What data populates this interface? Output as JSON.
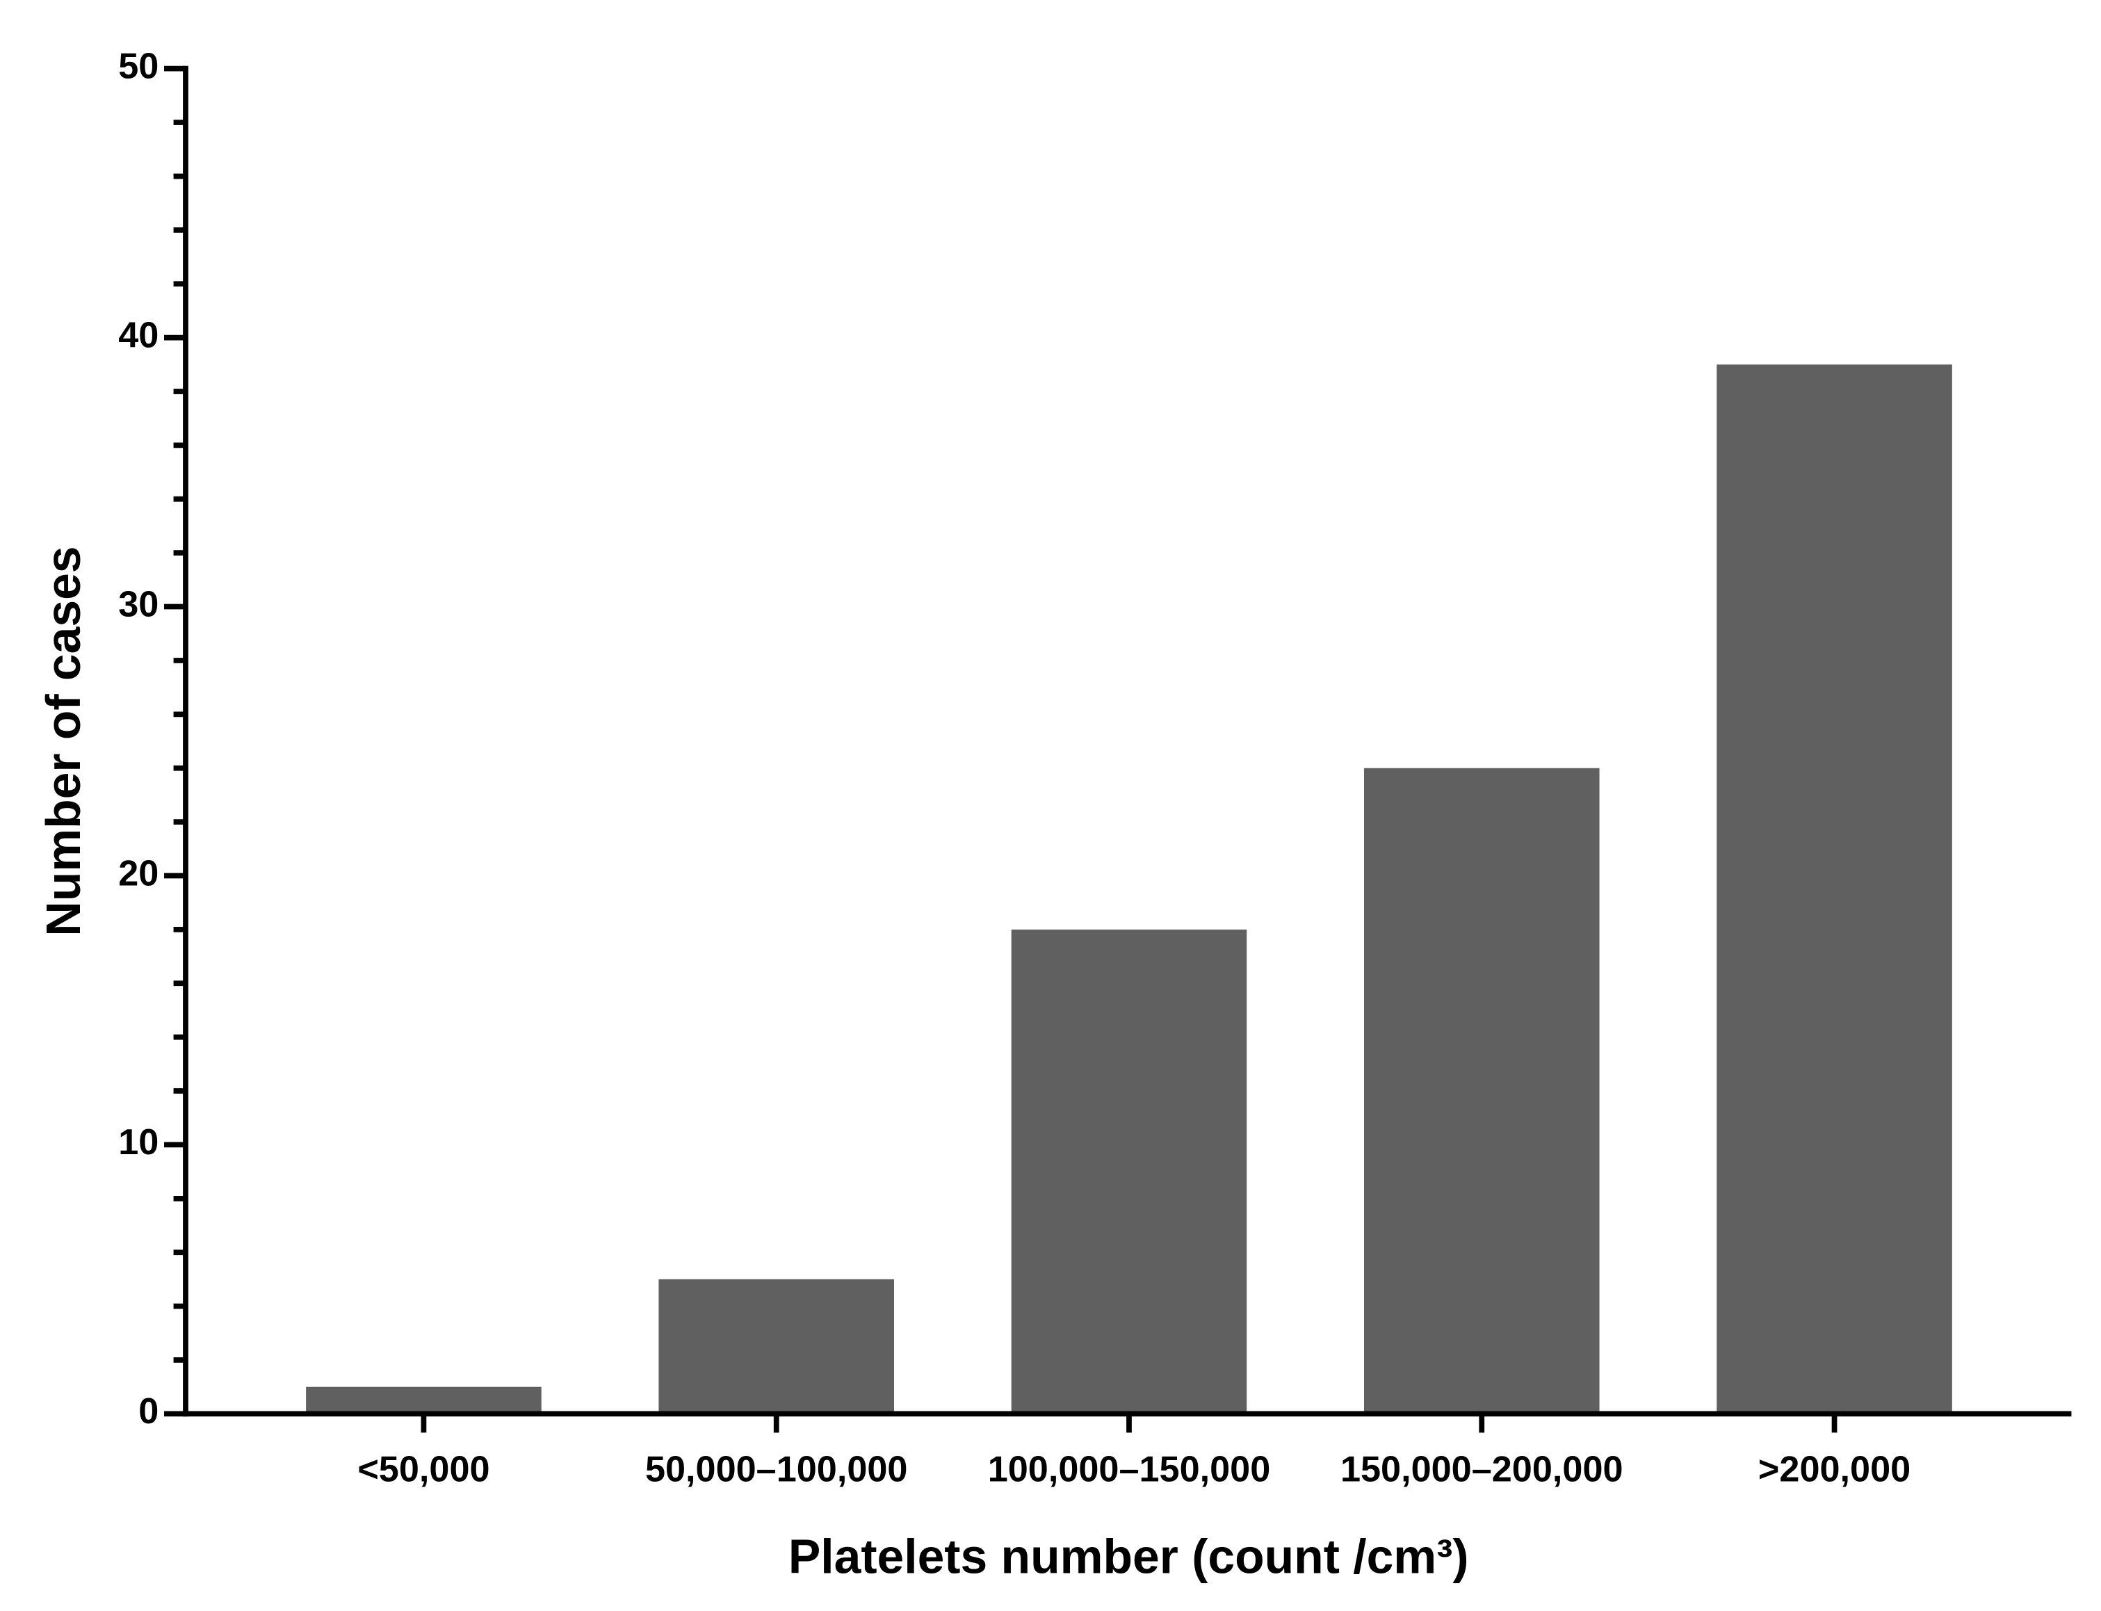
{
  "chart_data": {
    "type": "bar",
    "x_label": "Platelets number (count /cm³)",
    "y_label": "Number of cases",
    "categories": [
      "<50,000",
      "50,000–100,000",
      "100,000–150,000",
      "150,000–200,000",
      ">200,000"
    ],
    "values": [
      1,
      5,
      18,
      24,
      39
    ],
    "color": "#606060",
    "ylim": [
      0,
      50
    ],
    "yticks": [
      0,
      10,
      20,
      30,
      40,
      50
    ],
    "yminor_ticks": [
      2,
      4,
      6,
      8,
      12,
      14,
      16,
      18,
      22,
      24,
      26,
      28,
      32,
      34,
      36,
      38,
      42,
      44,
      46,
      48
    ],
    "grid": false
  }
}
